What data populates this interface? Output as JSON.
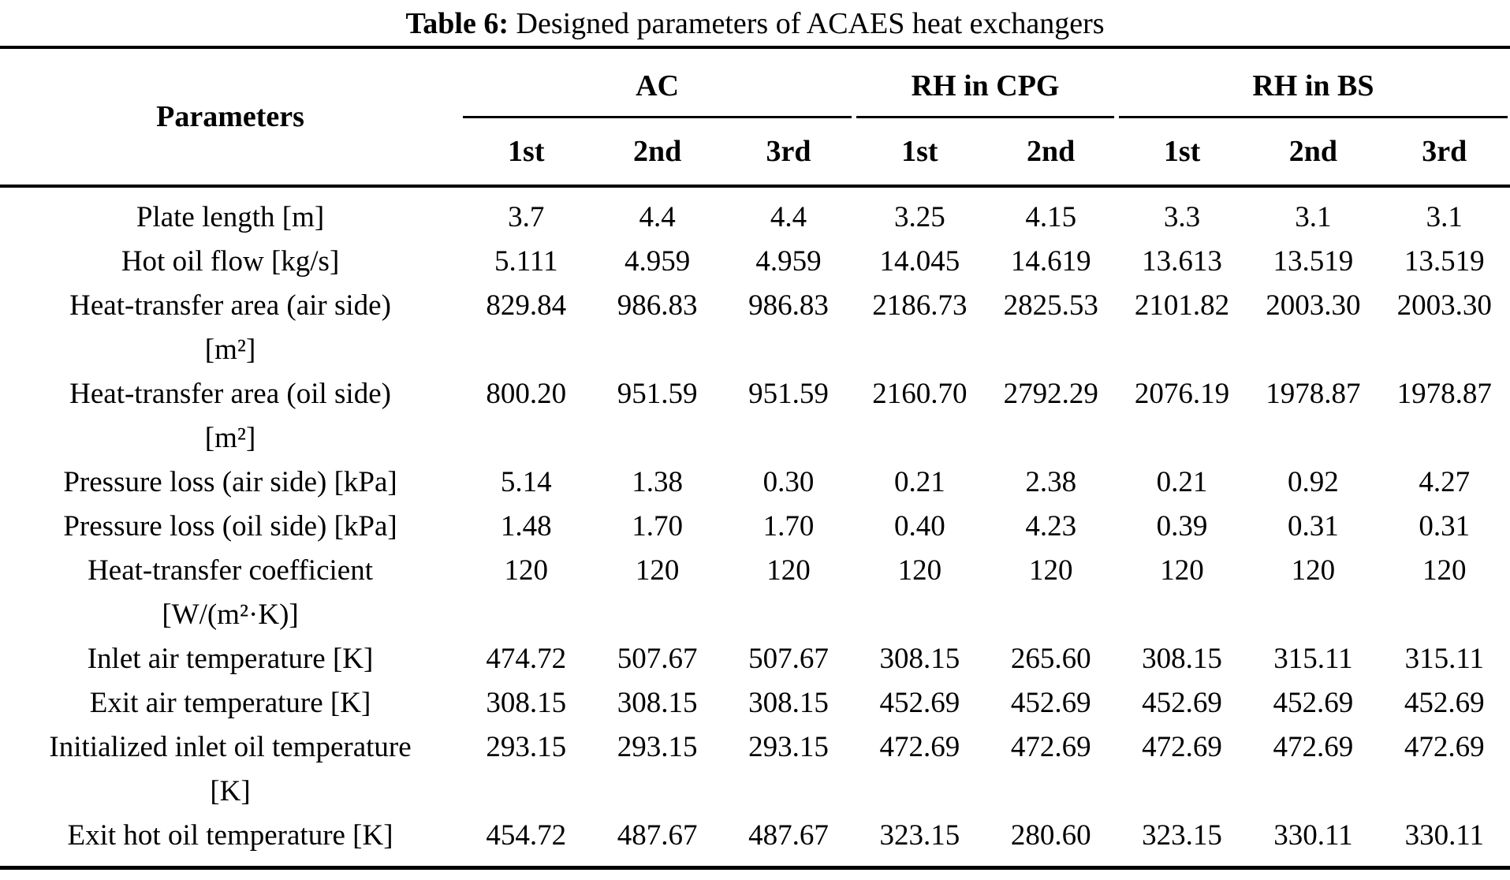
{
  "caption": {
    "label": "Table 6:",
    "title": " Designed parameters of ACAES heat exchangers"
  },
  "header": {
    "parameters": "Parameters",
    "groups": [
      {
        "label": "AC",
        "span": 3
      },
      {
        "label": "RH in CPG",
        "span": 2
      },
      {
        "label": "RH in BS",
        "span": 3
      }
    ],
    "subcolumns": [
      "1st",
      "2nd",
      "3rd",
      "1st",
      "2nd",
      "1st",
      "2nd",
      "3rd"
    ]
  },
  "rows": [
    {
      "param": "Plate length [m]",
      "values": [
        "3.7",
        "4.4",
        "4.4",
        "3.25",
        "4.15",
        "3.3",
        "3.1",
        "3.1"
      ]
    },
    {
      "param": "Hot oil flow [kg/s]",
      "values": [
        "5.111",
        "4.959",
        "4.959",
        "14.045",
        "14.619",
        "13.613",
        "13.519",
        "13.519"
      ]
    },
    {
      "param": "Heat-transfer area (air side)",
      "unit": "[m²]",
      "values": [
        "829.84",
        "986.83",
        "986.83",
        "2186.73",
        "2825.53",
        "2101.82",
        "2003.30",
        "2003.30"
      ]
    },
    {
      "param": "Heat-transfer area (oil side)",
      "unit": "[m²]",
      "values": [
        "800.20",
        "951.59",
        "951.59",
        "2160.70",
        "2792.29",
        "2076.19",
        "1978.87",
        "1978.87"
      ]
    },
    {
      "param": "Pressure loss (air side) [kPa]",
      "values": [
        "5.14",
        "1.38",
        "0.30",
        "0.21",
        "2.38",
        "0.21",
        "0.92",
        "4.27"
      ]
    },
    {
      "param": "Pressure loss (oil side) [kPa]",
      "values": [
        "1.48",
        "1.70",
        "1.70",
        "0.40",
        "4.23",
        "0.39",
        "0.31",
        "0.31"
      ]
    },
    {
      "param": "Heat-transfer coefficient",
      "unit": "[W/(m²·K)]",
      "values": [
        "120",
        "120",
        "120",
        "120",
        "120",
        "120",
        "120",
        "120"
      ]
    },
    {
      "param": "Inlet air temperature [K]",
      "values": [
        "474.72",
        "507.67",
        "507.67",
        "308.15",
        "265.60",
        "308.15",
        "315.11",
        "315.11"
      ]
    },
    {
      "param": "Exit air temperature [K]",
      "values": [
        "308.15",
        "308.15",
        "308.15",
        "452.69",
        "452.69",
        "452.69",
        "452.69",
        "452.69"
      ]
    },
    {
      "param": "Initialized inlet oil temperature",
      "unit": "[K]",
      "values": [
        "293.15",
        "293.15",
        "293.15",
        "472.69",
        "472.69",
        "472.69",
        "472.69",
        "472.69"
      ]
    },
    {
      "param": "Exit hot oil temperature [K]",
      "values": [
        "454.72",
        "487.67",
        "487.67",
        "323.15",
        "280.60",
        "323.15",
        "330.11",
        "330.11"
      ]
    }
  ]
}
